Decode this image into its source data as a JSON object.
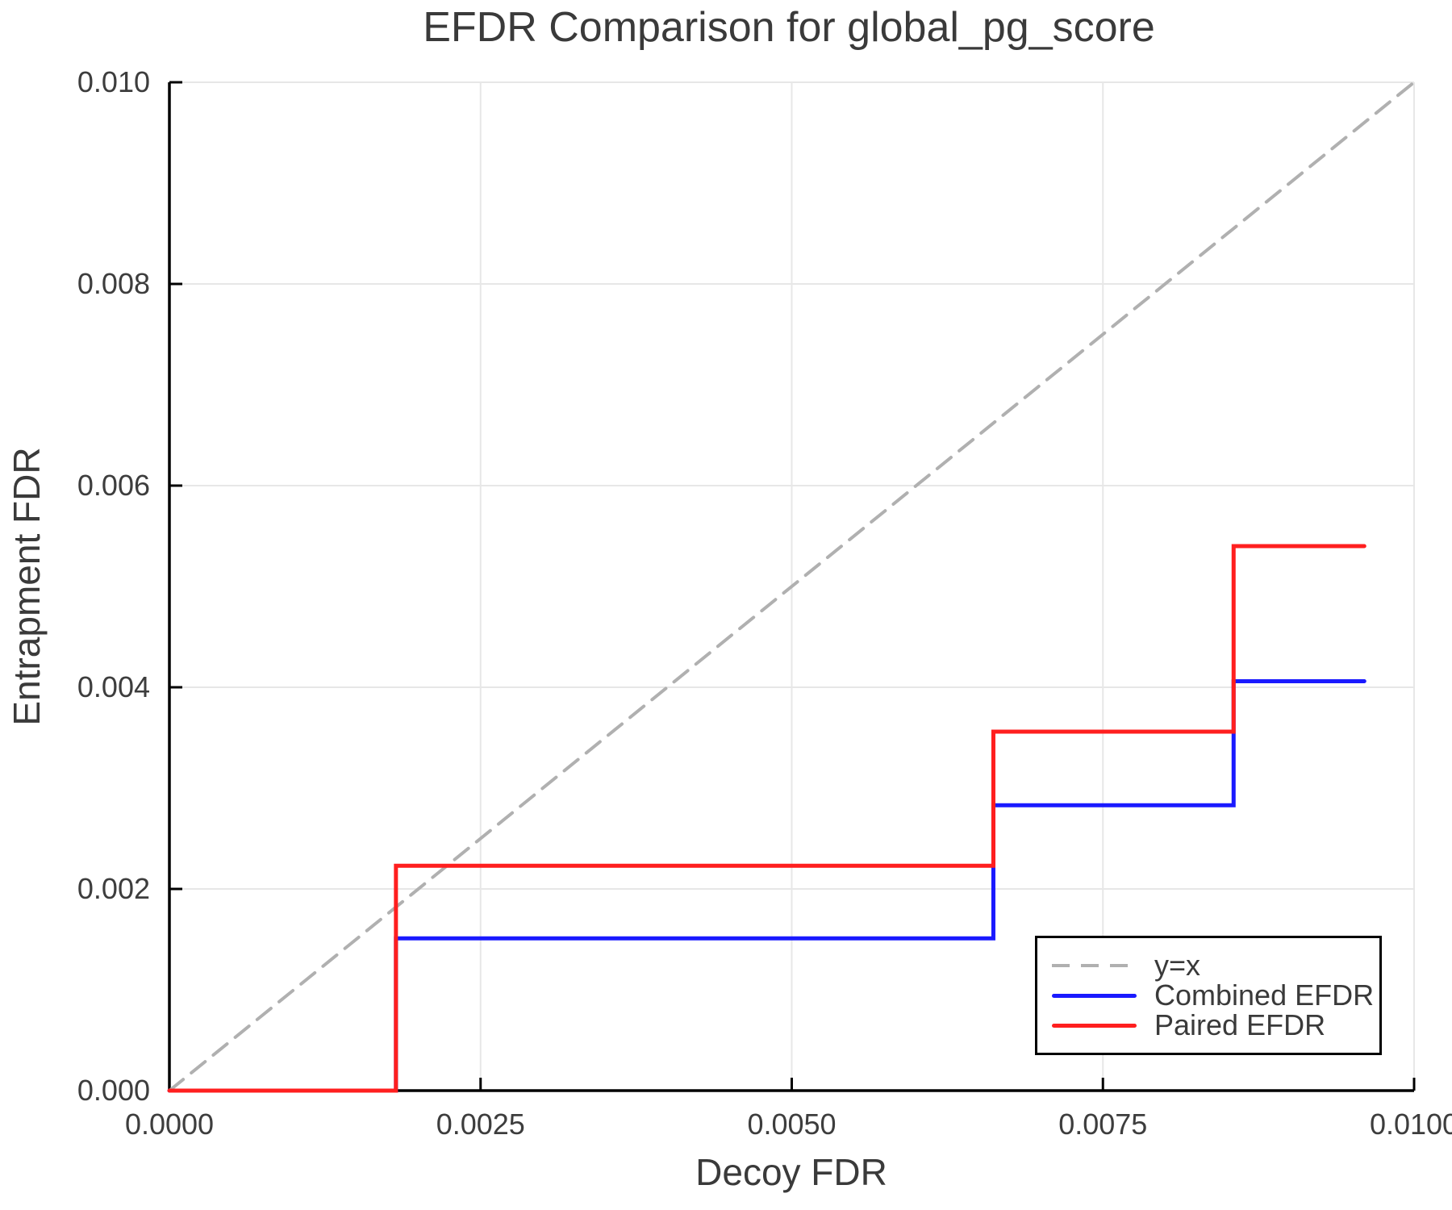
{
  "title": "EFDR Comparison for global_pg_score",
  "axes": {
    "xlabel": "Decoy FDR",
    "ylabel": "Entrapment FDR",
    "x_ticks": [
      {
        "label": "0.0000",
        "value": 0.0
      },
      {
        "label": "0.0025",
        "value": 0.0025
      },
      {
        "label": "0.0050",
        "value": 0.005
      },
      {
        "label": "0.0075",
        "value": 0.0075
      },
      {
        "label": "0.0100",
        "value": 0.01
      }
    ],
    "y_ticks": [
      {
        "label": "0.000",
        "value": 0.0
      },
      {
        "label": "0.002",
        "value": 0.002
      },
      {
        "label": "0.004",
        "value": 0.004
      },
      {
        "label": "0.006",
        "value": 0.006
      },
      {
        "label": "0.008",
        "value": 0.008
      },
      {
        "label": "0.010",
        "value": 0.01
      }
    ]
  },
  "colors": {
    "combined": "#1a1aff",
    "paired": "#ff1f1f",
    "identity": "#b0b0b0",
    "grid": "#e7e7e7",
    "spine": "#000000",
    "text": "#3a3a3a"
  },
  "legend": {
    "items": [
      {
        "label": "y=x",
        "style": "dashed",
        "color": "#b0b0b0"
      },
      {
        "label": "Combined EFDR",
        "style": "solid",
        "color": "#1a1aff"
      },
      {
        "label": "Paired EFDR",
        "style": "solid",
        "color": "#ff1f1f"
      }
    ]
  },
  "chart_data": {
    "type": "line",
    "title": "EFDR Comparison for global_pg_score",
    "xlabel": "Decoy FDR",
    "ylabel": "Entrapment FDR",
    "xlim": [
      0.0,
      0.01
    ],
    "ylim": [
      0.0,
      0.01
    ],
    "grid": true,
    "legend_position": "lower right",
    "series": [
      {
        "name": "y=x",
        "color": "#b0b0b0",
        "dashed": true,
        "width": 4,
        "x": [
          0.0,
          0.01
        ],
        "y": [
          0.0,
          0.01
        ]
      },
      {
        "name": "Combined EFDR",
        "color": "#1a1aff",
        "dashed": false,
        "width": 5,
        "x": [
          0.0,
          0.00182,
          0.00182,
          0.00662,
          0.00662,
          0.00855,
          0.00855,
          0.0096
        ],
        "y": [
          0.0,
          0.0,
          0.00151,
          0.00151,
          0.00283,
          0.00283,
          0.00406,
          0.00406
        ]
      },
      {
        "name": "Paired EFDR",
        "color": "#ff1f1f",
        "dashed": false,
        "width": 5,
        "x": [
          0.0,
          0.00182,
          0.00182,
          0.00662,
          0.00662,
          0.00855,
          0.00855,
          0.0096
        ],
        "y": [
          0.0,
          0.0,
          0.00223,
          0.00223,
          0.00356,
          0.00356,
          0.0054,
          0.0054
        ]
      }
    ]
  }
}
